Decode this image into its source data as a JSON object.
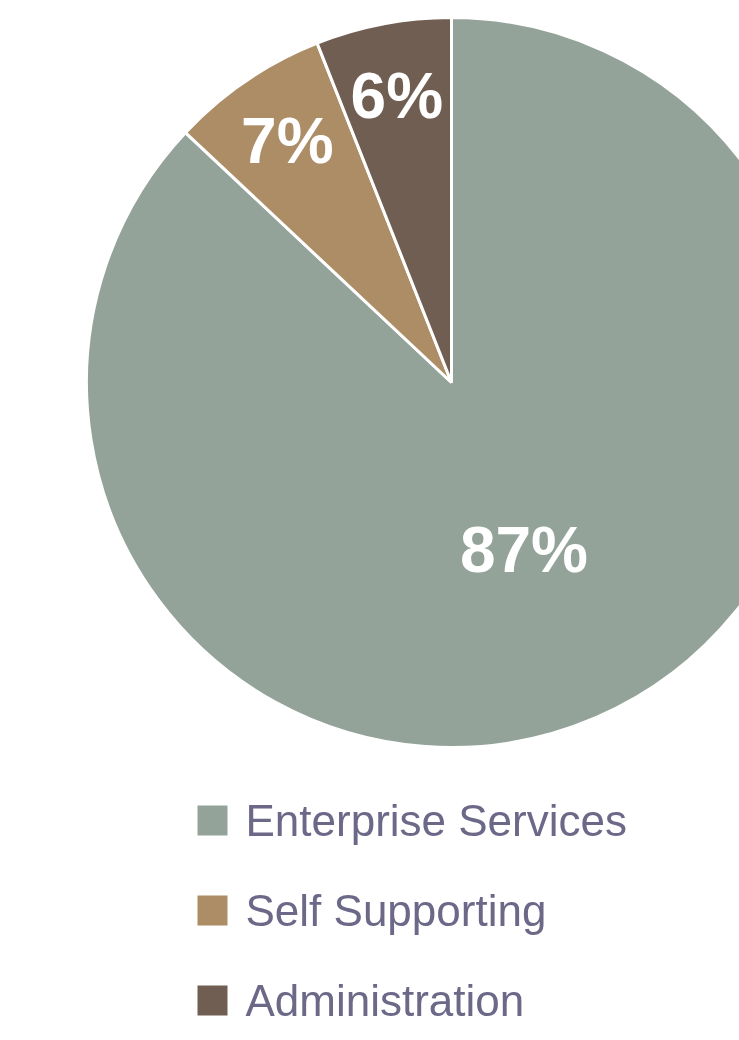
{
  "chart_data": {
    "type": "pie",
    "categories": [
      "Enterprise Services",
      "Self Supporting",
      "Administration"
    ],
    "values": [
      87,
      7,
      6
    ],
    "colors": [
      "#93a39a",
      "#ad8d65",
      "#705e53"
    ],
    "value_labels": [
      "87%",
      "7%",
      "6%"
    ],
    "legend": "bottom"
  }
}
